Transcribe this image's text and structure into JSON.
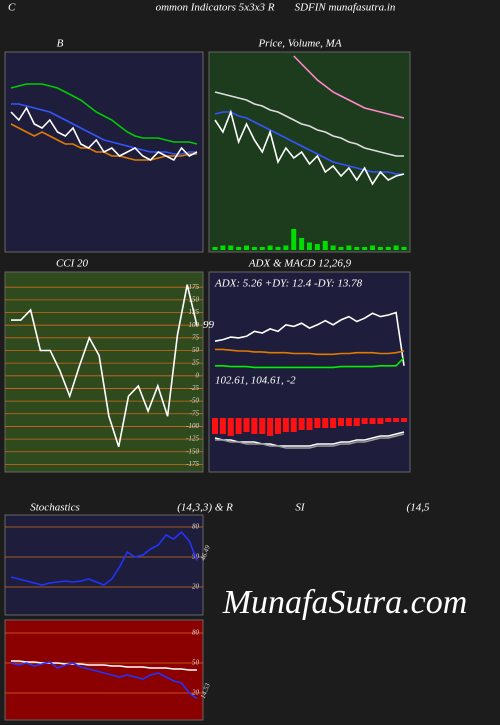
{
  "header": {
    "left": "C",
    "middle": "ommon Indicators 5x3x3 R",
    "right": "SDFIN munafasutra.in"
  },
  "watermark": "MunafaSutra.com",
  "chart_data": [
    {
      "type": "line",
      "title": "B",
      "ylim": [
        0,
        100
      ],
      "series": [
        {
          "color": "#00cc00",
          "values": [
            82,
            83,
            84,
            84,
            84,
            83,
            82,
            80,
            78,
            76,
            73,
            70,
            68,
            66,
            63,
            60,
            58,
            57,
            57,
            57,
            56,
            55,
            55,
            55,
            54
          ]
        },
        {
          "color": "#3355ff",
          "values": [
            74,
            74,
            73,
            72,
            71,
            70,
            68,
            66,
            64,
            62,
            60,
            58,
            56,
            55,
            54,
            53,
            52,
            51,
            50,
            50,
            50,
            49,
            49,
            50,
            50
          ]
        },
        {
          "color": "#e07b00",
          "values": [
            64,
            62,
            60,
            58,
            60,
            58,
            56,
            54,
            54,
            52,
            52,
            50,
            50,
            48,
            48,
            47,
            46,
            46,
            46,
            47,
            48,
            48,
            48,
            49,
            49
          ]
        },
        {
          "color": "#ffffff",
          "values": [
            70,
            66,
            72,
            64,
            62,
            66,
            60,
            58,
            62,
            54,
            52,
            56,
            50,
            52,
            48,
            50,
            52,
            48,
            46,
            50,
            48,
            46,
            52,
            48,
            50
          ]
        }
      ]
    },
    {
      "type": "line",
      "title": "Price, Volume, MA",
      "ylim": [
        0,
        100
      ],
      "series": [
        {
          "color": "#ff88cc",
          "values": [
            null,
            null,
            null,
            null,
            null,
            null,
            null,
            null,
            null,
            null,
            98,
            94,
            90,
            86,
            83,
            80,
            78,
            76,
            74,
            72,
            71,
            70,
            69,
            68,
            67
          ]
        },
        {
          "color": "#dddddd",
          "values": [
            80,
            79,
            78,
            77,
            76,
            74,
            73,
            71,
            70,
            68,
            66,
            64,
            63,
            61,
            60,
            58,
            57,
            55,
            54,
            52,
            51,
            50,
            49,
            48,
            48
          ]
        },
        {
          "color": "#3355ff",
          "values": [
            69,
            70,
            70,
            68,
            67,
            65,
            63,
            61,
            59,
            57,
            55,
            53,
            51,
            49,
            47,
            45,
            44,
            43,
            42,
            41,
            40,
            40,
            40,
            39,
            39
          ]
        },
        {
          "color": "#ffffff",
          "values": [
            66,
            60,
            70,
            55,
            64,
            56,
            50,
            60,
            45,
            52,
            47,
            50,
            44,
            48,
            40,
            43,
            38,
            42,
            36,
            42,
            34,
            40,
            36,
            38,
            39
          ]
        }
      ],
      "volume": {
        "color": "#00dd00",
        "ylim": [
          0,
          20
        ],
        "values": [
          2,
          3,
          3,
          2,
          3,
          2,
          2,
          3,
          2,
          3,
          14,
          8,
          5,
          4,
          6,
          3,
          2,
          3,
          2,
          2,
          3,
          2,
          2,
          3,
          2
        ]
      }
    },
    {
      "type": "line",
      "title": "CCI 20",
      "ylim": [
        -190,
        205
      ],
      "grid": true,
      "grid_color": "#d2691e",
      "yticks": [
        175,
        150,
        125,
        100,
        75,
        50,
        25,
        0,
        -25,
        -50,
        -75,
        -100,
        -125,
        -150,
        -175
      ],
      "annotation": "99",
      "series": [
        {
          "color": "#ffffff",
          "values": [
            110,
            110,
            130,
            50,
            50,
            10,
            -40,
            20,
            75,
            40,
            -80,
            -140,
            -40,
            -20,
            -70,
            -20,
            -80,
            80,
            180,
            99
          ]
        }
      ]
    },
    {
      "type": "line",
      "title": "ADX  & MACD 12,26,9",
      "subtitle": "ADX: 5.26  +DY: 12.4  -DY: 13.78",
      "ylim": [
        0,
        100
      ],
      "series": [
        {
          "color": "#ffffff",
          "values": [
            40,
            42,
            45,
            44,
            46,
            52,
            50,
            55,
            52,
            60,
            58,
            62,
            56,
            60,
            65,
            60,
            66,
            70,
            64,
            68,
            74,
            70,
            72,
            75,
            10
          ]
        },
        {
          "color": "#e07b00",
          "values": [
            30,
            30,
            29,
            28,
            28,
            27,
            27,
            26,
            26,
            26,
            25,
            25,
            25,
            24,
            24,
            24,
            25,
            25,
            26,
            26,
            26,
            25,
            25,
            26,
            28
          ]
        },
        {
          "color": "#00ee00",
          "values": [
            10,
            10,
            9,
            9,
            9,
            8,
            8,
            8,
            8,
            8,
            8,
            8,
            8,
            8,
            8,
            8,
            9,
            9,
            9,
            9,
            9,
            10,
            10,
            10,
            20
          ]
        }
      ]
    },
    {
      "type": "macd",
      "subtitle": "102.61,  104.61,  -2",
      "ylim": [
        -25,
        15
      ],
      "histogram": {
        "color": "#ff1111",
        "values": [
          -8,
          -8,
          -9,
          -8,
          -7,
          -8,
          -8,
          -9,
          -8,
          -7,
          -7,
          -6,
          -6,
          -5,
          -5,
          -5,
          -4,
          -4,
          -4,
          -3,
          -3,
          -3,
          -2,
          -2,
          -2
        ]
      },
      "series": [
        {
          "color": "#ffffff",
          "values": [
            -10,
            -11,
            -11,
            -12,
            -12,
            -12,
            -13,
            -13,
            -14,
            -14,
            -14,
            -14,
            -14,
            -13,
            -13,
            -13,
            -12,
            -12,
            -11,
            -11,
            -10,
            -9,
            -9,
            -8,
            -7
          ]
        },
        {
          "color": "#999999",
          "values": [
            -11,
            -11,
            -12,
            -12,
            -13,
            -13,
            -13,
            -14,
            -14,
            -15,
            -15,
            -15,
            -15,
            -14,
            -14,
            -14,
            -13,
            -13,
            -12,
            -12,
            -11,
            -10,
            -10,
            -9,
            -8
          ]
        }
      ]
    },
    {
      "type": "line",
      "title": "Stochastics",
      "subtitle": "(14,3,3) & R",
      "ylim": [
        -8,
        92
      ],
      "grid": true,
      "grid_color": "#d2691e",
      "yticks": [
        80,
        50,
        20
      ],
      "annotation": "46.49",
      "series": [
        {
          "color": "#2233ff",
          "values": [
            30,
            28,
            26,
            24,
            22,
            24,
            25,
            26,
            25,
            26,
            28,
            25,
            22,
            28,
            40,
            55,
            50,
            52,
            58,
            62,
            72,
            68,
            75,
            66,
            46.49
          ]
        }
      ]
    },
    {
      "type": "line",
      "title": "SI",
      "subtitle": "(14,5",
      "ylim": [
        -7,
        93
      ],
      "grid": true,
      "grid_color": "#d2691e",
      "yticks": [
        80,
        50,
        20
      ],
      "annotation": "14.53",
      "series": [
        {
          "color": "#ffffff",
          "values": [
            52,
            52,
            51,
            51,
            50,
            50,
            50,
            49,
            49,
            49,
            48,
            48,
            48,
            47,
            47,
            46,
            46,
            46,
            45,
            45,
            45,
            44,
            44,
            43,
            43
          ]
        },
        {
          "color": "#2233ff",
          "values": [
            50,
            48,
            50,
            47,
            49,
            51,
            45,
            48,
            50,
            46,
            44,
            42,
            40,
            38,
            36,
            38,
            36,
            34,
            38,
            40,
            36,
            32,
            30,
            20,
            14.53
          ]
        }
      ]
    }
  ]
}
